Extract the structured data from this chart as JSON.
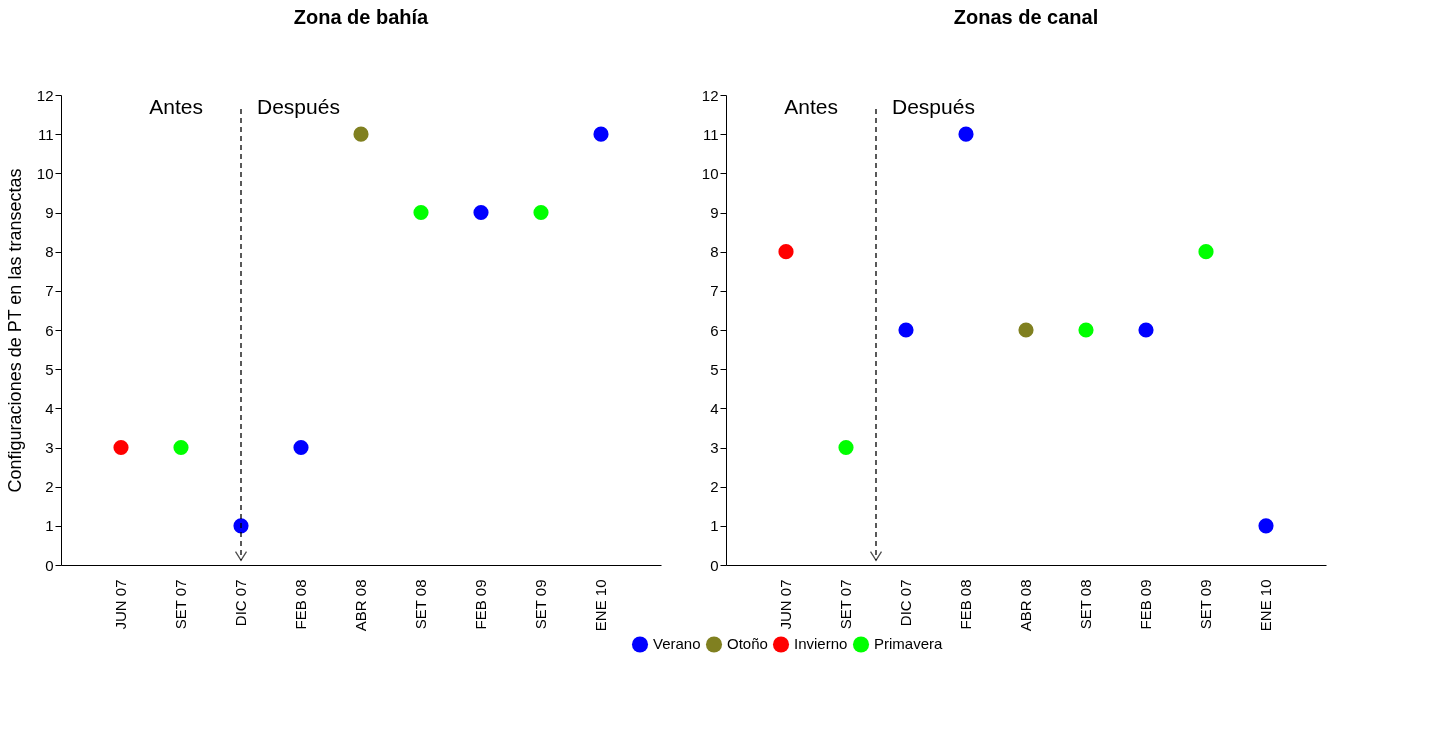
{
  "chart_data": [
    {
      "type": "scatter",
      "title": "Zona de bahía",
      "ylabel": "Configuraciones de PT en las transectas",
      "categories": [
        "JUN 07",
        "SET 07",
        "DIC 07",
        "FEB 08",
        "ABR 08",
        "SET 08",
        "FEB 09",
        "SET 09",
        "ENE 10"
      ],
      "series": [
        {
          "name": "Verano",
          "color": "#0000ff",
          "values": [
            null,
            null,
            1,
            3,
            null,
            null,
            9,
            null,
            11
          ]
        },
        {
          "name": "Otoño",
          "color": "#808020",
          "values": [
            null,
            null,
            null,
            null,
            11,
            null,
            null,
            null,
            null
          ]
        },
        {
          "name": "Invierno",
          "color": "#ff0000",
          "values": [
            3,
            null,
            null,
            null,
            null,
            null,
            null,
            null,
            null
          ]
        },
        {
          "name": "Primavera",
          "color": "#00ff00",
          "values": [
            null,
            3,
            null,
            null,
            null,
            9,
            null,
            9,
            null
          ]
        }
      ],
      "ylim": [
        0,
        12
      ],
      "yticks": [
        0,
        1,
        2,
        3,
        4,
        5,
        6,
        7,
        8,
        9,
        10,
        11,
        12
      ],
      "grid": false,
      "marker": "circle",
      "legend": "bottom",
      "ref_lines": [
        {
          "axis": "x",
          "value": "DIC 07",
          "line_style": "dashed"
        }
      ],
      "annotations": [
        "Antes",
        "Después"
      ]
    },
    {
      "type": "scatter",
      "title": "Zonas de canal",
      "categories": [
        "JUN 07",
        "SET 07",
        "DIC 07",
        "FEB 08",
        "ABR 08",
        "SET 08",
        "FEB 09",
        "SET 09",
        "ENE 10"
      ],
      "series": [
        {
          "name": "Verano",
          "color": "#0000ff",
          "values": [
            null,
            null,
            6,
            11,
            null,
            null,
            6,
            null,
            1
          ]
        },
        {
          "name": "Otoño",
          "color": "#808020",
          "values": [
            null,
            null,
            null,
            null,
            6,
            null,
            null,
            null,
            null
          ]
        },
        {
          "name": "Invierno",
          "color": "#ff0000",
          "values": [
            8,
            null,
            null,
            null,
            null,
            null,
            null,
            null,
            null
          ]
        },
        {
          "name": "Primavera",
          "color": "#00ff00",
          "values": [
            null,
            3,
            null,
            null,
            null,
            6,
            null,
            8,
            null
          ]
        }
      ],
      "ylim": [
        0,
        12
      ],
      "yticks": [
        0,
        1,
        2,
        3,
        4,
        5,
        6,
        7,
        8,
        9,
        10,
        11,
        12
      ],
      "grid": false,
      "marker": "circle",
      "legend": "bottom",
      "annotations": [
        "Antes",
        "Después"
      ]
    }
  ]
}
